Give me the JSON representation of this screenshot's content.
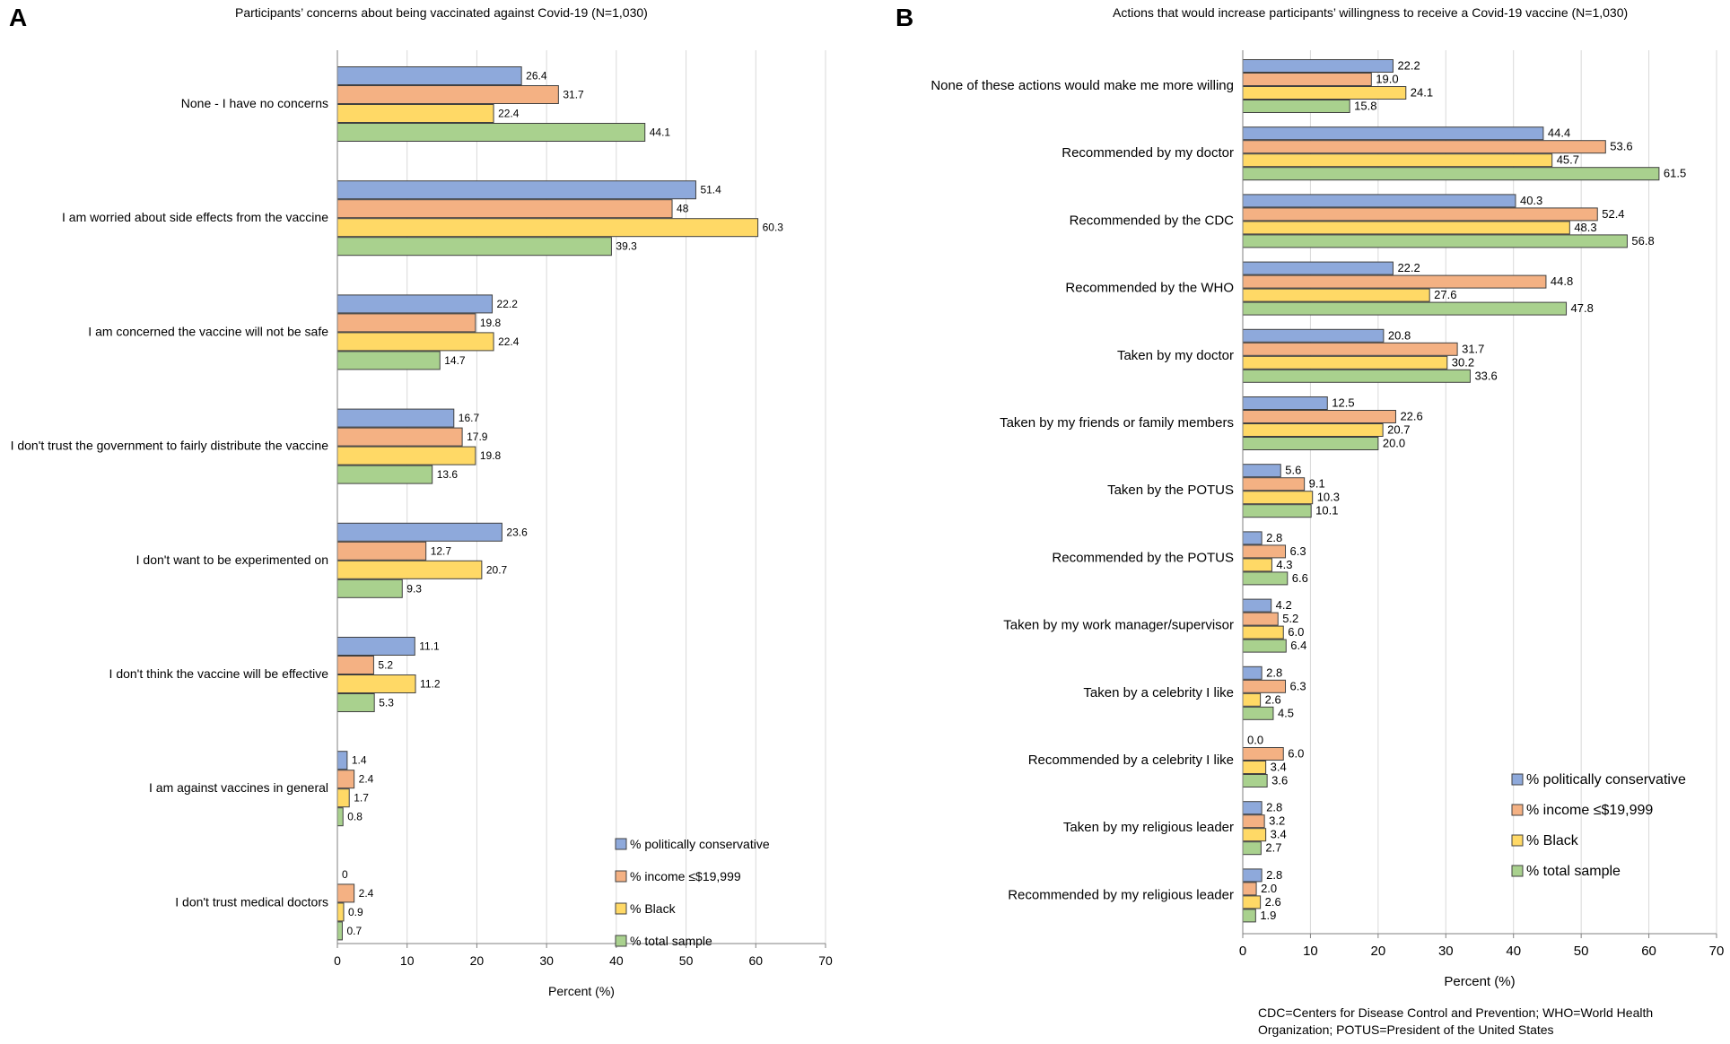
{
  "panels": {
    "a": {
      "letter": "A"
    },
    "b": {
      "letter": "B"
    }
  },
  "footnote": {
    "line1": "CDC=Centers for Disease Control and Prevention; WHO=World Health",
    "line2": "Organization; POTUS=President of the United States"
  },
  "colors": {
    "politically_conservative": "#8EA9DB",
    "income": "#F4B183",
    "black": "#FFD966",
    "total_sample": "#A9D18E",
    "outline": "#404040",
    "grid": "#D9D9D9",
    "axis": "#808080"
  },
  "chart_data": [
    {
      "type": "bar",
      "orientation": "horizontal",
      "title": "Participants’ concerns about being vaccinated against Covid-19 (N=1,030)",
      "xlabel": "Percent (%)",
      "ylabel": "",
      "xlim": [
        0,
        70
      ],
      "xticks": [
        0,
        10,
        20,
        30,
        40,
        50,
        60,
        70
      ],
      "grid": true,
      "legend_position": "bottom-right",
      "categories": [
        "None - I have no concerns",
        "I am worried about side effects from the vaccine",
        "I am concerned the vaccine will not be safe",
        "I don't trust the government to fairly distribute the vaccine",
        "I don't want to be experimented on",
        "I don't think the vaccine will be effective",
        "I am against vaccines in general",
        "I don't trust medical doctors"
      ],
      "series": [
        {
          "name": "% politically conservative",
          "values": [
            26.4,
            51.4,
            22.2,
            16.7,
            23.6,
            11.1,
            1.4,
            0
          ],
          "labels": [
            "26.4",
            "51.4",
            "22.2",
            "16.7",
            "23.6",
            "11.1",
            "1.4",
            "0"
          ]
        },
        {
          "name": "% income ≤$19,999",
          "values": [
            31.7,
            48,
            19.8,
            17.9,
            12.7,
            5.2,
            2.4,
            2.4
          ],
          "labels": [
            "31.7",
            "48",
            "19.8",
            "17.9",
            "12.7",
            "5.2",
            "2.4",
            "2.4"
          ]
        },
        {
          "name": "% Black",
          "values": [
            22.4,
            60.3,
            22.4,
            19.8,
            20.7,
            11.2,
            1.7,
            0.9
          ],
          "labels": [
            "22.4",
            "60.3",
            "22.4",
            "19.8",
            "20.7",
            "11.2",
            "1.7",
            "0.9"
          ]
        },
        {
          "name": "% total sample",
          "values": [
            44.1,
            39.3,
            14.7,
            13.6,
            9.3,
            5.3,
            0.8,
            0.7
          ],
          "labels": [
            "44.1",
            "39.3",
            "14.7",
            "13.6",
            "9.3",
            "5.3",
            "0.8",
            "0.7"
          ]
        }
      ]
    },
    {
      "type": "bar",
      "orientation": "horizontal",
      "title": "Actions that would increase participants’ willingness to receive a Covid-19 vaccine (N=1,030)",
      "xlabel": "Percent (%)",
      "ylabel": "",
      "xlim": [
        0,
        70
      ],
      "xticks": [
        0,
        10,
        20,
        30,
        40,
        50,
        60,
        70
      ],
      "grid": true,
      "legend_position": "bottom-right",
      "categories": [
        "None of these actions would make me more willing",
        "Recommended by my doctor",
        "Recommended by the CDC",
        "Recommended by the WHO",
        "Taken by my doctor",
        "Taken by my friends or family members",
        "Taken by the POTUS",
        "Recommended by the POTUS",
        "Taken by  my work manager/supervisor",
        "Taken by a celebrity I like",
        "Recommended by a celebrity I like",
        "Taken by my religious leader",
        "Recommended by my religious leader"
      ],
      "series": [
        {
          "name": "% politically conservative",
          "values": [
            22.2,
            44.4,
            40.3,
            22.2,
            20.8,
            12.5,
            5.6,
            2.8,
            4.2,
            2.8,
            0.0,
            2.8,
            2.8
          ],
          "labels": [
            "22.2",
            "44.4",
            "40.3",
            "22.2",
            "20.8",
            "12.5",
            "5.6",
            "2.8",
            "4.2",
            "2.8",
            "0.0",
            "2.8",
            "2.8"
          ]
        },
        {
          "name": "% income ≤$19,999",
          "values": [
            19.0,
            53.6,
            52.4,
            44.8,
            31.7,
            22.6,
            9.1,
            6.3,
            5.2,
            6.3,
            6.0,
            3.2,
            2.0
          ],
          "labels": [
            "19.0",
            "53.6",
            "52.4",
            "44.8",
            "31.7",
            "22.6",
            "9.1",
            "6.3",
            "5.2",
            "6.3",
            "6.0",
            "3.2",
            "2.0"
          ]
        },
        {
          "name": "% Black",
          "values": [
            24.1,
            45.7,
            48.3,
            27.6,
            30.2,
            20.7,
            10.3,
            4.3,
            6.0,
            2.6,
            3.4,
            3.4,
            2.6
          ],
          "labels": [
            "24.1",
            "45.7",
            "48.3",
            "27.6",
            "30.2",
            "20.7",
            "10.3",
            "4.3",
            "6.0",
            "2.6",
            "3.4",
            "3.4",
            "2.6"
          ]
        },
        {
          "name": "% total sample",
          "values": [
            15.8,
            61.5,
            56.8,
            47.8,
            33.6,
            20.0,
            10.1,
            6.6,
            6.4,
            4.5,
            3.6,
            2.7,
            1.9
          ],
          "labels": [
            "15.8",
            "61.5",
            "56.8",
            "47.8",
            "33.6",
            "20.0",
            "10.1",
            "6.6",
            "6.4",
            "4.5",
            "3.6",
            "2.7",
            "1.9"
          ]
        }
      ]
    }
  ]
}
